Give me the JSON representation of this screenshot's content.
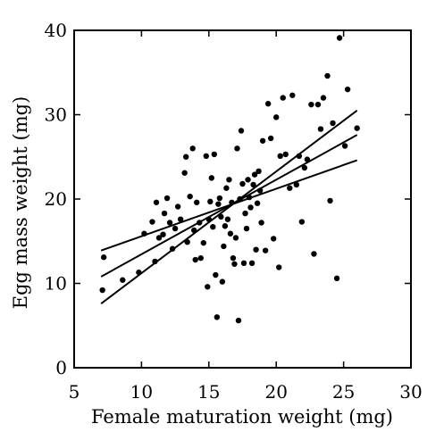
{
  "chart_data": {
    "type": "scatter",
    "xlabel": "Female maturation weight (mg)",
    "ylabel": "Egg mass weight (mg)",
    "xlim": [
      5,
      30
    ],
    "ylim": [
      0,
      40
    ],
    "x_ticks": [
      5,
      10,
      15,
      20,
      25,
      30
    ],
    "y_ticks": [
      0,
      10,
      20,
      30,
      40
    ],
    "grid": false,
    "legend": "none",
    "colors": {
      "points": "#000000",
      "lines": "#000000",
      "axes": "#000000"
    },
    "points": [
      [
        7.1,
        9.2
      ],
      [
        7.2,
        13.1
      ],
      [
        8.6,
        10.4
      ],
      [
        9.8,
        11.3
      ],
      [
        10.2,
        15.9
      ],
      [
        10.8,
        17.3
      ],
      [
        11.0,
        12.6
      ],
      [
        11.1,
        19.6
      ],
      [
        11.3,
        15.4
      ],
      [
        11.6,
        15.8
      ],
      [
        11.7,
        18.3
      ],
      [
        11.9,
        20.1
      ],
      [
        12.1,
        17.2
      ],
      [
        12.3,
        14.1
      ],
      [
        12.5,
        16.5
      ],
      [
        12.7,
        19.1
      ],
      [
        12.9,
        17.6
      ],
      [
        13.2,
        23.1
      ],
      [
        13.3,
        25.0
      ],
      [
        13.4,
        14.9
      ],
      [
        13.6,
        20.3
      ],
      [
        13.8,
        26.0
      ],
      [
        13.9,
        16.3
      ],
      [
        14.0,
        12.8
      ],
      [
        14.1,
        19.6
      ],
      [
        14.3,
        17.2
      ],
      [
        14.4,
        13.0
      ],
      [
        14.6,
        14.8
      ],
      [
        14.8,
        25.1
      ],
      [
        14.9,
        9.6
      ],
      [
        15.0,
        17.6
      ],
      [
        15.1,
        19.7
      ],
      [
        15.2,
        22.5
      ],
      [
        15.3,
        16.7
      ],
      [
        15.4,
        25.3
      ],
      [
        15.5,
        11.0
      ],
      [
        15.6,
        6.0
      ],
      [
        15.7,
        19.4
      ],
      [
        15.8,
        20.1
      ],
      [
        15.9,
        17.9
      ],
      [
        16.0,
        10.2
      ],
      [
        16.1,
        14.4
      ],
      [
        16.2,
        16.8
      ],
      [
        16.3,
        21.3
      ],
      [
        16.4,
        17.6
      ],
      [
        16.5,
        22.3
      ],
      [
        16.6,
        15.9
      ],
      [
        16.7,
        19.6
      ],
      [
        16.8,
        13.0
      ],
      [
        16.9,
        12.3
      ],
      [
        17.0,
        15.4
      ],
      [
        17.1,
        26.0
      ],
      [
        17.2,
        5.6
      ],
      [
        17.3,
        20.0
      ],
      [
        17.4,
        28.1
      ],
      [
        17.5,
        21.8
      ],
      [
        17.6,
        12.4
      ],
      [
        17.7,
        18.3
      ],
      [
        17.8,
        16.5
      ],
      [
        17.9,
        22.3
      ],
      [
        18.0,
        20.2
      ],
      [
        18.1,
        19.0
      ],
      [
        18.2,
        12.4
      ],
      [
        18.3,
        21.7
      ],
      [
        18.4,
        22.9
      ],
      [
        18.5,
        14.0
      ],
      [
        18.6,
        19.5
      ],
      [
        18.7,
        23.3
      ],
      [
        18.8,
        21.0
      ],
      [
        18.9,
        17.2
      ],
      [
        19.0,
        26.9
      ],
      [
        19.2,
        13.9
      ],
      [
        19.4,
        31.3
      ],
      [
        19.6,
        27.2
      ],
      [
        19.8,
        15.3
      ],
      [
        20.0,
        29.7
      ],
      [
        20.2,
        11.9
      ],
      [
        20.3,
        25.1
      ],
      [
        20.5,
        32.0
      ],
      [
        20.7,
        25.3
      ],
      [
        21.0,
        21.3
      ],
      [
        21.2,
        32.3
      ],
      [
        21.5,
        21.7
      ],
      [
        21.7,
        25.1
      ],
      [
        21.9,
        17.3
      ],
      [
        22.1,
        23.7
      ],
      [
        22.3,
        24.7
      ],
      [
        22.6,
        31.2
      ],
      [
        22.8,
        13.5
      ],
      [
        23.1,
        31.2
      ],
      [
        23.3,
        28.3
      ],
      [
        23.5,
        32.0
      ],
      [
        23.8,
        34.6
      ],
      [
        24.0,
        19.8
      ],
      [
        24.2,
        29.0
      ],
      [
        24.5,
        10.6
      ],
      [
        24.7,
        39.1
      ],
      [
        25.1,
        26.3
      ],
      [
        25.3,
        33.0
      ],
      [
        26.0,
        28.4
      ]
    ],
    "lines": [
      {
        "x": [
          7.0,
          26.0
        ],
        "y": [
          7.6,
          30.5
        ]
      },
      {
        "x": [
          7.0,
          26.0
        ],
        "y": [
          10.8,
          27.6
        ]
      },
      {
        "x": [
          7.0,
          26.0
        ],
        "y": [
          13.9,
          24.6
        ]
      }
    ]
  }
}
